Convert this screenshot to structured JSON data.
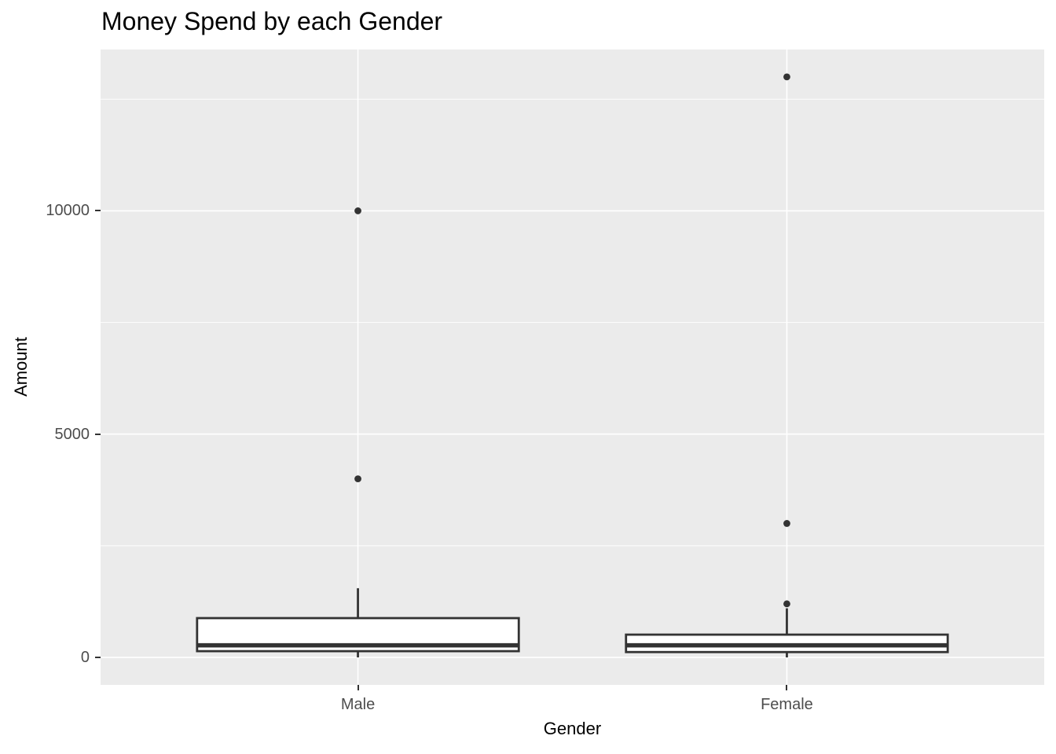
{
  "chart_data": {
    "type": "boxplot",
    "title": "Money Spend by each Gender",
    "xlabel": "Gender",
    "ylabel": "Amount",
    "categories": [
      "Male",
      "Female"
    ],
    "y_tick_labels": [
      "0",
      "5000",
      "10000"
    ],
    "y_tick_values": [
      0,
      5000,
      10000
    ],
    "y_minor_values": [
      2500,
      7500,
      12500
    ],
    "ylim": [
      -615,
      13613
    ],
    "grid": "on",
    "legend": "none",
    "series": [
      {
        "name": "Male",
        "whisker_low": 0,
        "q1": 140,
        "median": 270,
        "q3": 880,
        "whisker_high": 1550,
        "outliers": [
          4000,
          10000
        ]
      },
      {
        "name": "Female",
        "whisker_low": 0,
        "q1": 120,
        "median": 270,
        "q3": 510,
        "whisker_high": 1100,
        "outliers": [
          1200,
          3000,
          13000
        ]
      }
    ],
    "colors": {
      "panel_background": "#EBEBEB",
      "gridline": "#FFFFFF",
      "box_fill": "#FFFFFF",
      "box_stroke": "#333333",
      "outlier": "#333333",
      "tick_mark": "#333333",
      "tick_label": "#4D4D4D",
      "title_text": "#000000"
    }
  }
}
